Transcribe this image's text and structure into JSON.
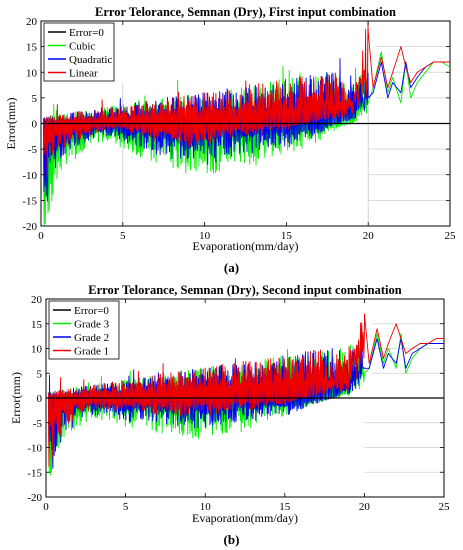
{
  "chart_data": [
    {
      "type": "line",
      "title": "Error Telorance, Semnan (Dry), First input combination",
      "xlabel": "Evaporation(mm/day)",
      "ylabel": "Error(mm)",
      "xlim": [
        0,
        25
      ],
      "ylim": [
        -20,
        20
      ],
      "xticks": [
        "0",
        "5",
        "10",
        "15",
        "20",
        "25"
      ],
      "yticks": [
        "-20",
        "-15",
        "-10",
        "-5",
        "0",
        "5",
        "10",
        "15",
        "20"
      ],
      "grid": false,
      "legend_position": "top-left",
      "caption": "(a)",
      "series": [
        {
          "name": "Error=0",
          "color": "#000000",
          "x": [
            0,
            25
          ],
          "y": [
            0,
            0
          ]
        },
        {
          "name": "Cubic",
          "color": "#00ee00",
          "x": [
            0.2,
            1,
            2,
            3,
            4,
            5,
            6,
            7,
            8,
            9,
            10,
            11,
            12,
            13,
            14,
            15,
            16,
            17,
            18,
            19,
            20,
            20.3,
            20.8,
            21.2,
            21.5,
            22,
            22.3,
            22.6,
            23,
            23.5,
            24,
            24.5,
            25
          ],
          "y": [
            -18,
            -9,
            -6,
            -4,
            -3,
            -5,
            -6,
            -7,
            -8,
            -8,
            -9,
            -8,
            -7,
            -7,
            -6,
            -5,
            -4,
            -3,
            -1,
            0,
            4,
            7,
            14,
            6,
            9,
            4,
            12,
            5,
            8,
            10,
            12,
            12,
            11
          ]
        },
        {
          "name": "Quadratic",
          "color": "#0000ee",
          "x": [
            0.2,
            1,
            2,
            3,
            4,
            5,
            6,
            7,
            8,
            9,
            10,
            11,
            12,
            13,
            14,
            15,
            16,
            17,
            18,
            19,
            20,
            20.3,
            20.8,
            21.2,
            21.5,
            22,
            22.3,
            22.6,
            23,
            23.5,
            24,
            24.5,
            25
          ],
          "y": [
            -15,
            -6,
            -4,
            -3,
            -2,
            -3,
            -4,
            -5,
            -6,
            -6,
            -7,
            -6,
            -5,
            -5,
            -4,
            -4,
            -3,
            -2,
            0,
            1,
            5,
            6,
            12,
            5,
            8,
            6,
            12,
            7,
            9,
            11,
            12,
            12,
            12
          ]
        },
        {
          "name": "Linear",
          "color": "#ee0000",
          "x": [
            0.2,
            1,
            2,
            3,
            4,
            5,
            6,
            7,
            8,
            9,
            10,
            11,
            12,
            13,
            14,
            15,
            16,
            17,
            18,
            19,
            20,
            20.3,
            20.8,
            21.2,
            21.5,
            22,
            22.3,
            22.6,
            23,
            23.5,
            24,
            24.5,
            25
          ],
          "y": [
            -10,
            -5,
            -3,
            -2,
            -1,
            -1,
            -2,
            -3,
            -3,
            -4,
            -4,
            -3,
            -2,
            -2,
            -1,
            -1,
            0,
            1,
            2,
            3,
            18,
            7,
            13,
            7,
            10,
            15,
            11,
            8,
            10,
            11,
            12,
            12,
            12
          ]
        }
      ]
    },
    {
      "type": "line",
      "title": "Error Telorance, Semnan (Dry), Second input combination",
      "xlabel": "Evaporation(mm/day)",
      "ylabel": "Error(mm)",
      "xlim": [
        0,
        25
      ],
      "ylim": [
        -20,
        20
      ],
      "xticks": [
        "0",
        "5",
        "10",
        "15",
        "20",
        "25"
      ],
      "yticks": [
        "-20",
        "-15",
        "-10",
        "-5",
        "0",
        "5",
        "10",
        "15",
        "20"
      ],
      "grid": false,
      "legend_position": "top-left",
      "caption": "(b)",
      "series": [
        {
          "name": "Error=0",
          "color": "#000000",
          "x": [
            0,
            25
          ],
          "y": [
            0,
            0
          ]
        },
        {
          "name": "Grade 3",
          "color": "#00ee00",
          "x": [
            0.2,
            1,
            2,
            3,
            4,
            5,
            6,
            7,
            8,
            9,
            10,
            11,
            12,
            13,
            14,
            15,
            16,
            17,
            18,
            19,
            20,
            20.3,
            20.8,
            21.2,
            21.5,
            22,
            22.3,
            22.6,
            23,
            23.5,
            24,
            24.5,
            25
          ],
          "y": [
            -16,
            -8,
            -5,
            -4,
            -4,
            -5,
            -5,
            -6,
            -6,
            -7,
            -7,
            -6,
            -6,
            -5,
            -4,
            -3,
            -2,
            -1,
            0,
            1,
            5,
            6,
            13,
            7,
            10,
            6,
            13,
            5,
            8,
            10,
            11,
            11,
            11
          ]
        },
        {
          "name": "Grade 2",
          "color": "#0000ee",
          "x": [
            0.2,
            1,
            2,
            3,
            4,
            5,
            6,
            7,
            8,
            9,
            10,
            11,
            12,
            13,
            14,
            15,
            16,
            17,
            18,
            19,
            20,
            20.3,
            20.8,
            21.2,
            21.5,
            22,
            22.3,
            22.6,
            23,
            23.5,
            24,
            24.5,
            25
          ],
          "y": [
            -17,
            -7,
            -4,
            -3,
            -3,
            -4,
            -4,
            -4,
            -5,
            -5,
            -5,
            -5,
            -4,
            -4,
            -3,
            -3,
            -2,
            -1,
            0,
            2,
            6,
            6,
            12,
            6,
            9,
            7,
            12,
            6,
            9,
            10,
            11,
            11,
            11
          ]
        },
        {
          "name": "Grade 1",
          "color": "#ee0000",
          "x": [
            0.2,
            1,
            2,
            3,
            4,
            5,
            6,
            7,
            8,
            9,
            10,
            11,
            12,
            13,
            14,
            15,
            16,
            17,
            18,
            19,
            20,
            20.3,
            20.8,
            21.2,
            21.5,
            22,
            22.3,
            22.6,
            23,
            23.5,
            24,
            24.5,
            25
          ],
          "y": [
            -12,
            -6,
            -3,
            -2,
            -2,
            -2,
            -2,
            -3,
            -3,
            -3,
            -3,
            -3,
            -2,
            -2,
            -1,
            -1,
            0,
            1,
            2,
            3,
            17,
            7,
            14,
            8,
            11,
            15,
            12,
            9,
            10,
            11,
            11,
            12,
            12
          ]
        }
      ]
    }
  ]
}
